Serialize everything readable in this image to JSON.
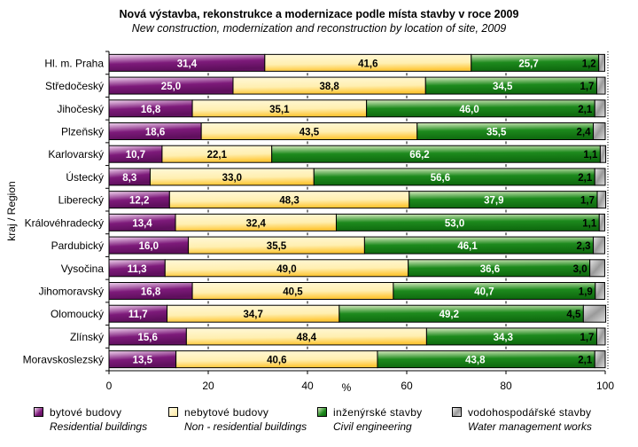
{
  "chart_data": {
    "type": "bar",
    "orientation": "horizontal",
    "stacked": "percent",
    "title": "Nová výstavba, rekonstrukce a modernizace podle místa stavby v roce 2009",
    "subtitle": "New construction, modernization and reconstruction by location of site, 2009",
    "xlabel": "%",
    "ylabel": "kraj / Region",
    "xlim": [
      0,
      100
    ],
    "xticks": [
      "0",
      "20",
      "40",
      "60",
      "80",
      "100"
    ],
    "grid": false,
    "legend_position": "bottom",
    "categories": [
      "Hl. m. Praha",
      "Středočeský",
      "Jihočeský",
      "Plzeňský",
      "Karlovarský",
      "Ústecký",
      "Liberecký",
      "Královéhradecký",
      "Pardubický",
      "Vysočina",
      "Jihomoravský",
      "Olomoucký",
      "Zlínský",
      "Moravskoslezský"
    ],
    "series": [
      {
        "name": "bytové budovy",
        "name_en": "Residential buildings",
        "color": "#7a1a78",
        "label_color": "#ffffff",
        "values": [
          31.4,
          25.0,
          16.8,
          18.6,
          10.7,
          8.3,
          12.2,
          13.4,
          16.0,
          11.3,
          16.8,
          11.7,
          15.6,
          13.5
        ],
        "labels": [
          "31,4",
          "25,0",
          "16,8",
          "18,6",
          "10,7",
          "8,3",
          "12,2",
          "13,4",
          "16,0",
          "11,3",
          "16,8",
          "11,7",
          "15,6",
          "13,5"
        ]
      },
      {
        "name": "nebytové budovy",
        "name_en": "Non - residential buildings",
        "color": "#ffd966",
        "label_color": "#000000",
        "values": [
          41.6,
          38.8,
          35.1,
          43.5,
          22.1,
          33.0,
          48.3,
          32.4,
          35.5,
          49.0,
          40.5,
          34.7,
          48.4,
          40.6
        ],
        "labels": [
          "41,6",
          "38,8",
          "35,1",
          "43,5",
          "22,1",
          "33,0",
          "48,3",
          "32,4",
          "35,5",
          "49,0",
          "40,5",
          "34,7",
          "48,4",
          "40,6"
        ]
      },
      {
        "name": "inženýrské stavby",
        "name_en": "Civil engineering",
        "color": "#1a7a1a",
        "label_color": "#ffffff",
        "values": [
          25.7,
          34.5,
          46.0,
          35.5,
          66.2,
          56.6,
          37.9,
          53.0,
          46.1,
          36.6,
          40.7,
          49.2,
          34.3,
          43.8
        ],
        "labels": [
          "25,7",
          "34,5",
          "46,0",
          "35,5",
          "66,2",
          "56,6",
          "37,9",
          "53,0",
          "46,1",
          "36,6",
          "40,7",
          "49,2",
          "34,3",
          "43,8"
        ]
      },
      {
        "name": "vodohospodářské stavby",
        "name_en": "Water management works",
        "color": "#a0a0a0",
        "label_color": "#000000",
        "values": [
          1.2,
          1.7,
          2.1,
          2.4,
          1.1,
          2.1,
          1.7,
          1.1,
          2.3,
          3.0,
          1.9,
          4.5,
          1.7,
          2.1
        ],
        "labels": [
          "1,2",
          "1,7",
          "2,1",
          "2,4",
          "1,1",
          "2,1",
          "1,7",
          "1,1",
          "2,3",
          "3,0",
          "1,9",
          "4,5",
          "1,7",
          "2,1"
        ]
      }
    ]
  }
}
